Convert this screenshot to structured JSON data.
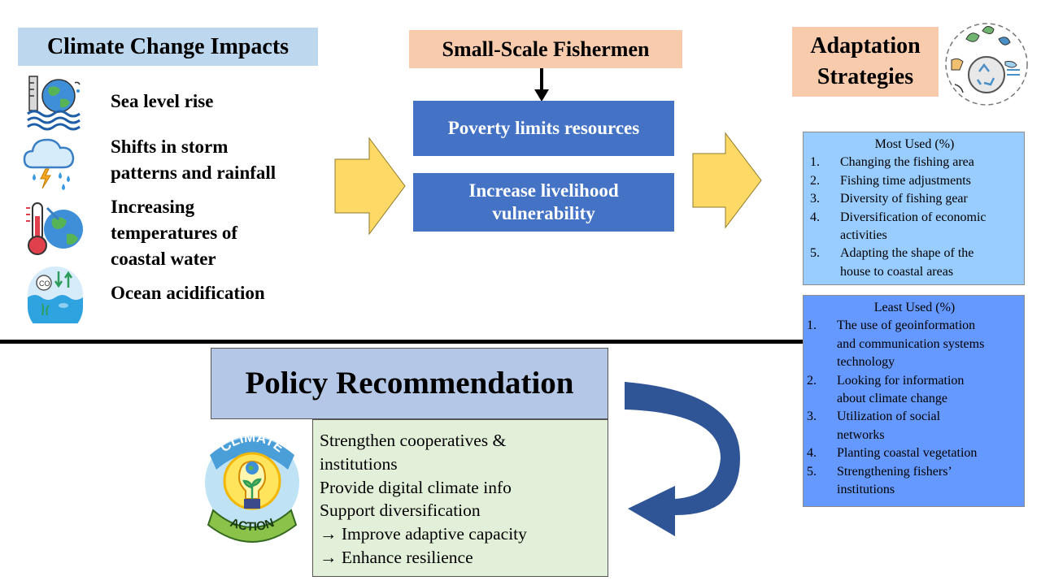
{
  "impacts": {
    "title": "Climate Change Impacts",
    "items": [
      {
        "label_lines": [
          "Sea level rise"
        ],
        "icon": "sea-level-rise-icon"
      },
      {
        "label_lines": [
          "Shifts in storm",
          "patterns and rainfall"
        ],
        "icon": "storm-rain-icon"
      },
      {
        "label_lines": [
          "Increasing",
          "temperatures of",
          "coastal water"
        ],
        "icon": "thermometer-globe-icon"
      },
      {
        "label_lines": [
          "Ocean acidification"
        ],
        "icon": "ocean-acidification-icon"
      }
    ]
  },
  "fishermen": {
    "title": "Small-Scale Fishermen",
    "box1": "Poverty limits resources",
    "box2_lines": [
      "Increase livelihood",
      "vulnerability"
    ]
  },
  "adaptation": {
    "title_lines": [
      "Adaptation",
      "Strategies"
    ],
    "icon": "adaptation-strategies-icon",
    "most_used": {
      "title": "Most Used (%)",
      "items": [
        {
          "num": "1.",
          "lines": [
            "Changing the fishing area"
          ]
        },
        {
          "num": "2.",
          "lines": [
            "Fishing time adjustments"
          ]
        },
        {
          "num": "3.",
          "lines": [
            "Diversity of fishing gear"
          ]
        },
        {
          "num": "4.",
          "lines": [
            "Diversification of economic",
            "activities"
          ]
        },
        {
          "num": "5.",
          "lines": [
            "Adapting the shape of the",
            "house to coastal areas"
          ]
        }
      ]
    },
    "least_used": {
      "title": "Least Used (%)",
      "items": [
        {
          "num": "1.",
          "lines": [
            "The use of geoinformation",
            "and communication systems",
            "technology"
          ]
        },
        {
          "num": "2.",
          "lines": [
            "Looking for information",
            "about climate change"
          ]
        },
        {
          "num": "3.",
          "lines": [
            "Utilization of social",
            "networks"
          ]
        },
        {
          "num": "4.",
          "lines": [
            "Planting coastal vegetation"
          ]
        },
        {
          "num": "5.",
          "lines": [
            "Strengthening fishers’",
            "institutions"
          ]
        }
      ]
    }
  },
  "policy": {
    "title": "Policy Recommendation",
    "items": [
      "Strengthen cooperatives &",
      "institutions",
      "Provide digital climate info",
      "Support diversification",
      "→ Improve adaptive capacity",
      "→ Enhance resilience"
    ],
    "badge": {
      "top_text": "CLIMATE",
      "bottom_text": "ACTION",
      "icon": "climate-action-lightbulb-icon"
    }
  },
  "colors": {
    "impacts_header_bg": "#bdd7ee",
    "fishermen_header_bg": "#f8cbad",
    "adaptation_header_bg": "#f8cbad",
    "blue_box": "#4472c4",
    "most_used_bg": "#99ccff",
    "least_used_bg": "#6699ff",
    "policy_title_bg": "#b4c7e7",
    "policy_list_bg": "#e2f0d9",
    "block_arrow": "#ffd966",
    "curved_arrow": "#2f5597"
  }
}
